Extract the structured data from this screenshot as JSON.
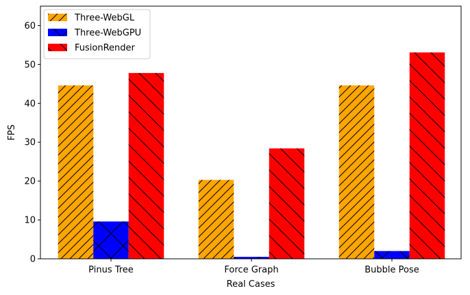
{
  "chart_data": {
    "type": "bar",
    "title": "",
    "xlabel": "Real Cases",
    "ylabel": "FPS",
    "ylim": [
      0,
      65
    ],
    "yticks": [
      0,
      10,
      20,
      30,
      40,
      50,
      60
    ],
    "categories": [
      "Pinus Tree",
      "Force Graph",
      "Bubble Pose"
    ],
    "series": [
      {
        "name": "Three-WebGL",
        "values": [
          44.6,
          20.3,
          44.6
        ],
        "color": "#ffa500",
        "hatch": "forward-diagonal"
      },
      {
        "name": "Three-WebGPU",
        "values": [
          9.6,
          0.5,
          2.0
        ],
        "color": "#0000ff",
        "hatch": "cross"
      },
      {
        "name": "FusionRender",
        "values": [
          47.8,
          28.4,
          53.1
        ],
        "color": "#ff0000",
        "hatch": "backward-diagonal"
      }
    ],
    "grid": false,
    "legend": "top-left"
  }
}
